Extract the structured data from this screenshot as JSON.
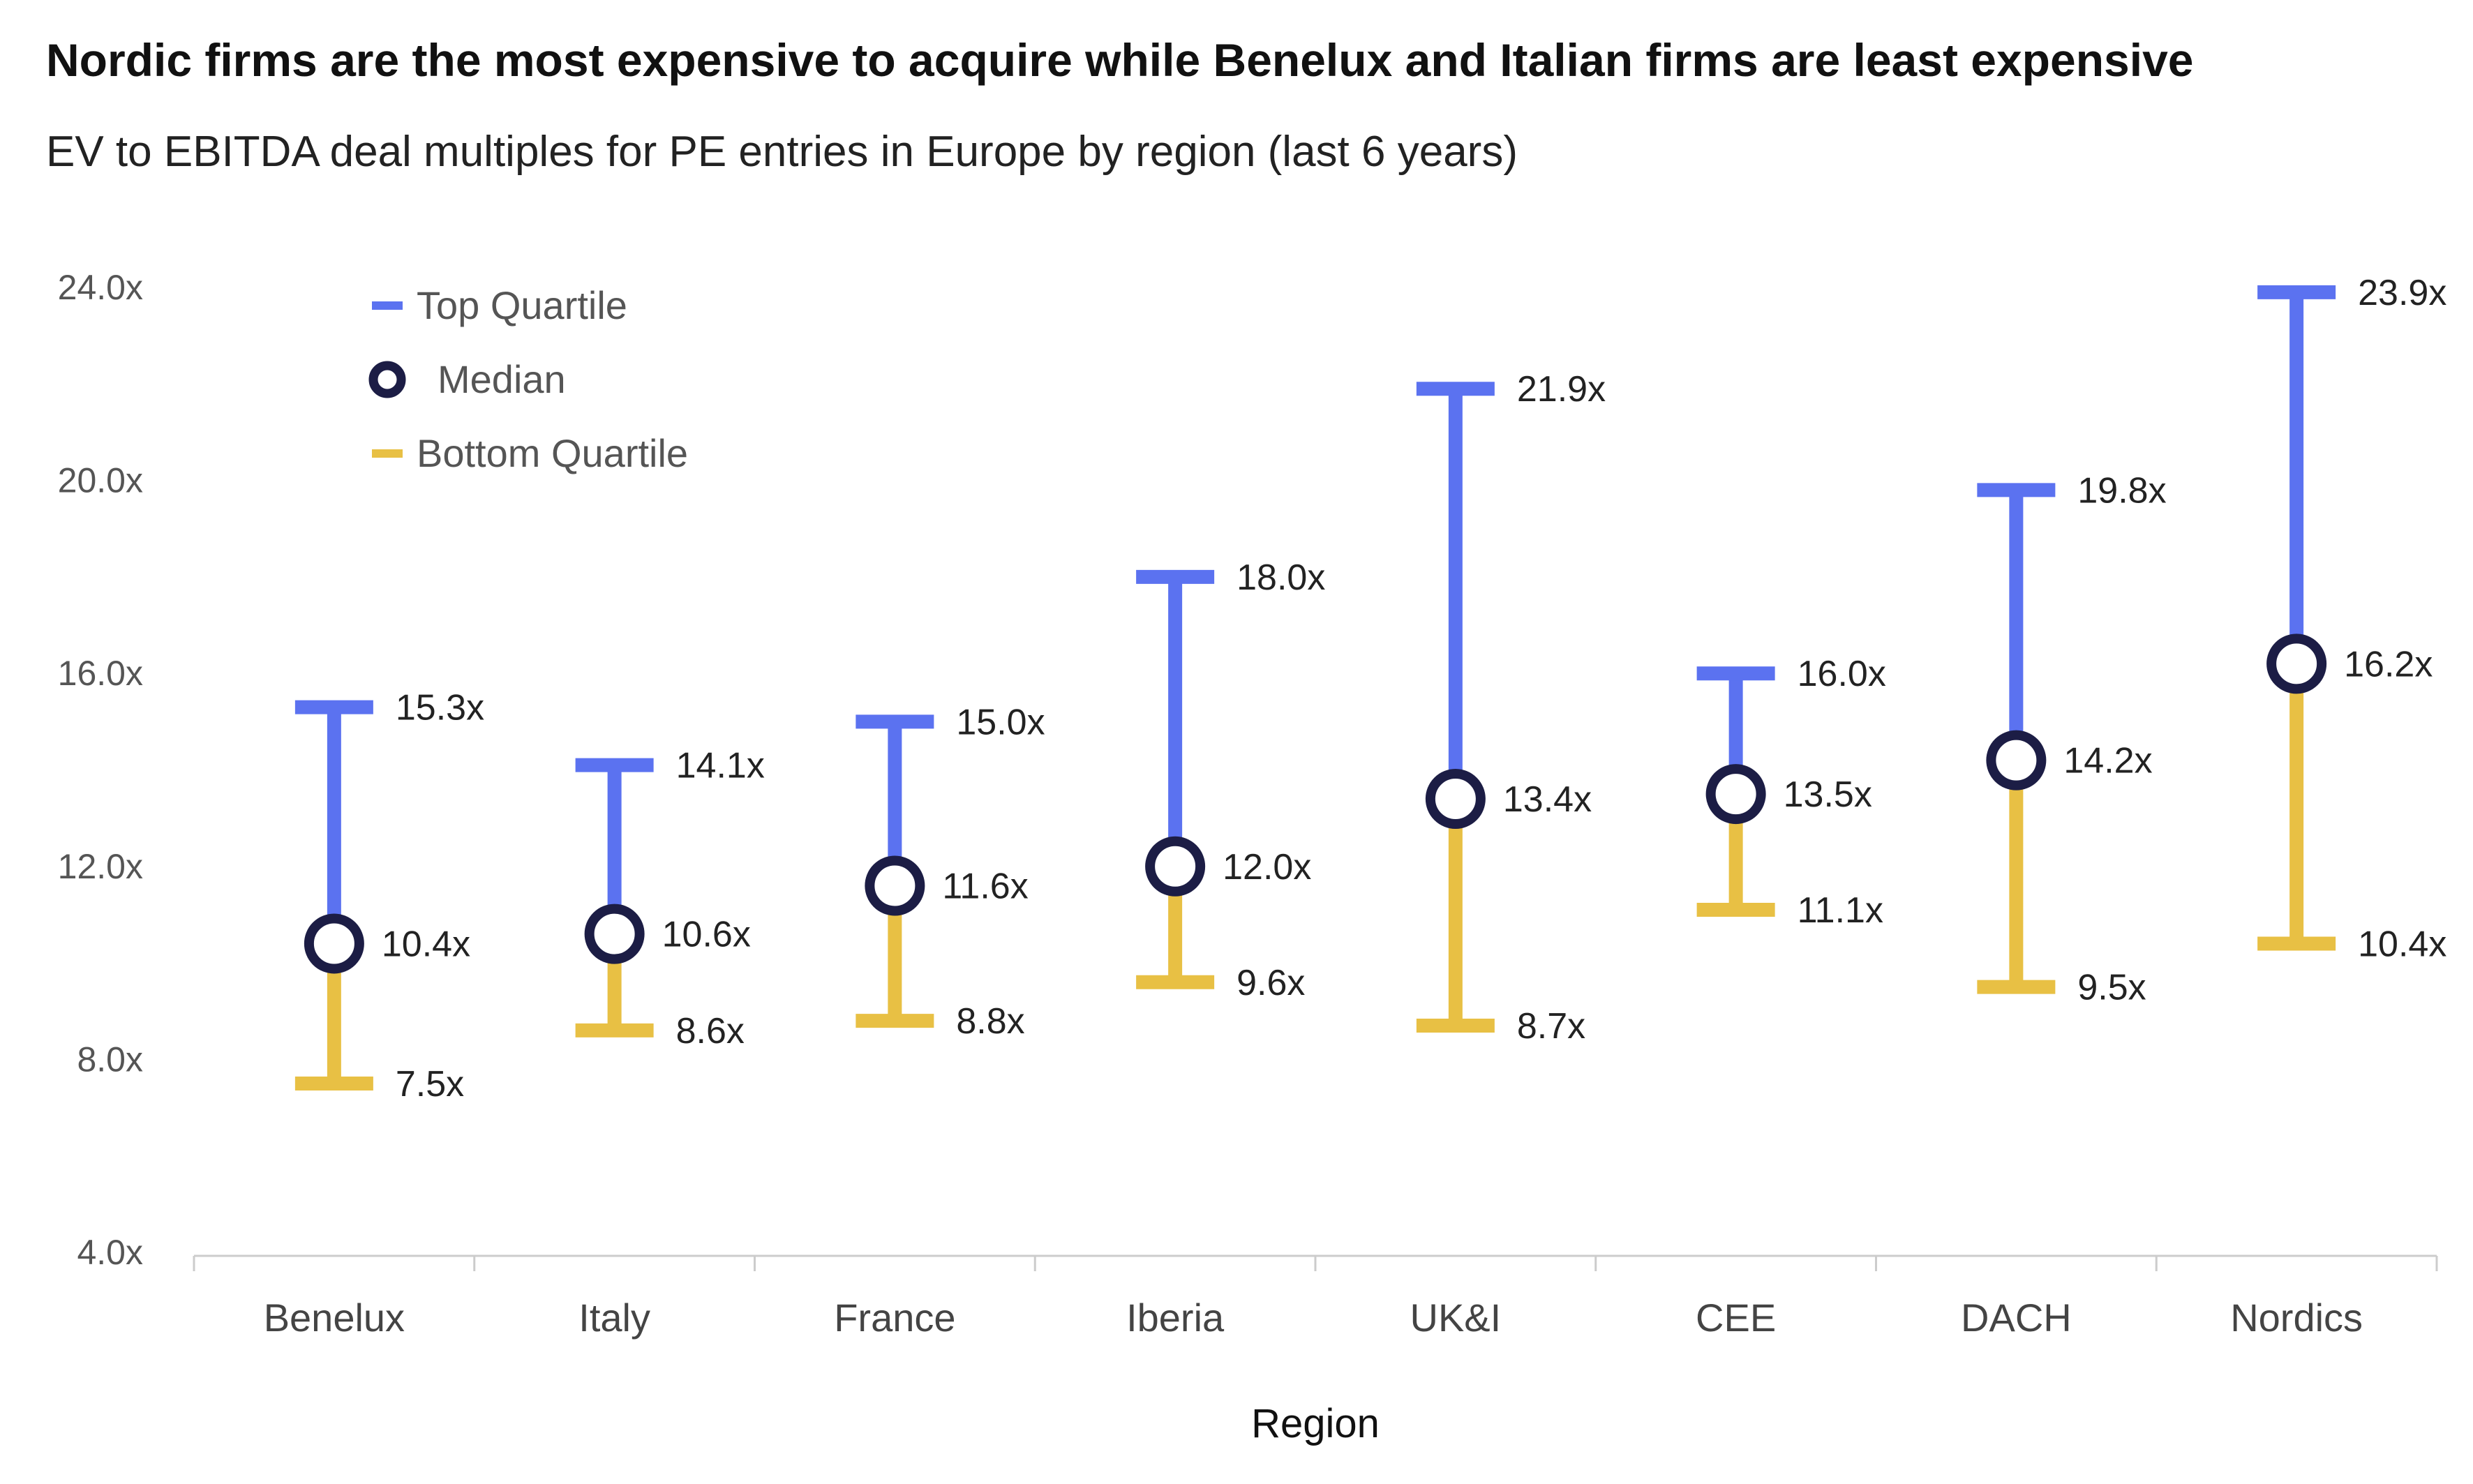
{
  "title": "Nordic firms are the most expensive to acquire while Benelux and Italian firms are least expensive",
  "subtitle": "EV to EBITDA deal multiples for PE entries in Europe by region (last 6 years)",
  "colors": {
    "top_quartile": "#5b72f0",
    "bottom_quartile": "#e8c044",
    "median_ring": "#1c1d45",
    "axis": "#cccccc"
  },
  "legend": [
    {
      "label": "Top Quartile",
      "color": "#5b72f0",
      "marker": "line"
    },
    {
      "label": "Median",
      "color": "#1c1d45",
      "marker": "ring"
    },
    {
      "label": "Bottom Quartile",
      "color": "#e8c044",
      "marker": "line"
    }
  ],
  "chart_data": {
    "type": "range",
    "xlabel": "Region",
    "ylabel": "",
    "ylim": [
      4,
      24
    ],
    "yticks": [
      4,
      8,
      12,
      16,
      20,
      24
    ],
    "ytick_labels": [
      "4.0x",
      "8.0x",
      "12.0x",
      "16.0x",
      "20.0x",
      "24.0x"
    ],
    "grid": false,
    "legend_position": "top-left",
    "categories": [
      "Benelux",
      "Italy",
      "France",
      "Iberia",
      "UK&I",
      "CEE",
      "DACH",
      "Nordics"
    ],
    "series": [
      {
        "name": "Top Quartile",
        "values": [
          15.3,
          14.1,
          15.0,
          18.0,
          21.9,
          16.0,
          19.8,
          23.9
        ],
        "labels": [
          "15.3x",
          "14.1x",
          "15.0x",
          "18.0x",
          "21.9x",
          "16.0x",
          "19.8x",
          "23.9x"
        ]
      },
      {
        "name": "Median",
        "values": [
          10.4,
          10.6,
          11.6,
          12.0,
          13.4,
          13.5,
          14.2,
          16.2
        ],
        "labels": [
          "10.4x",
          "10.6x",
          "11.6x",
          "12.0x",
          "13.4x",
          "13.5x",
          "14.2x",
          "16.2x"
        ]
      },
      {
        "name": "Bottom Quartile",
        "values": [
          7.5,
          8.6,
          8.8,
          9.6,
          8.7,
          11.1,
          9.5,
          10.4
        ],
        "labels": [
          "7.5x",
          "8.6x",
          "8.8x",
          "9.6x",
          "8.7x",
          "11.1x",
          "9.5x",
          "10.4x"
        ]
      }
    ]
  }
}
